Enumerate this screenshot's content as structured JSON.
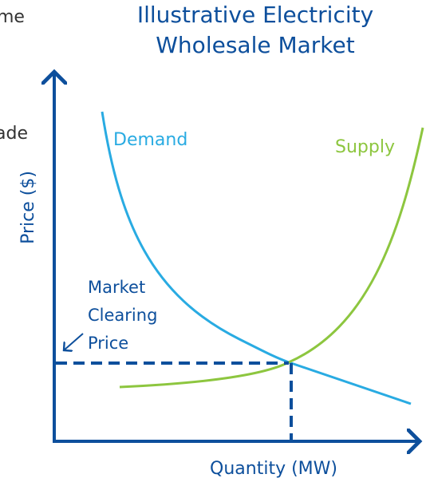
{
  "title": [
    "Illustrative Electricity",
    "Wholesale Market"
  ],
  "cropped_text": [
    "me",
    "ade"
  ],
  "curves": {
    "demand": "Demand",
    "supply": "Supply"
  },
  "axes": {
    "y": "Price ($)",
    "x": "Quantity (MW)"
  },
  "annotation": [
    "Market",
    "Clearing",
    "Price"
  ]
}
